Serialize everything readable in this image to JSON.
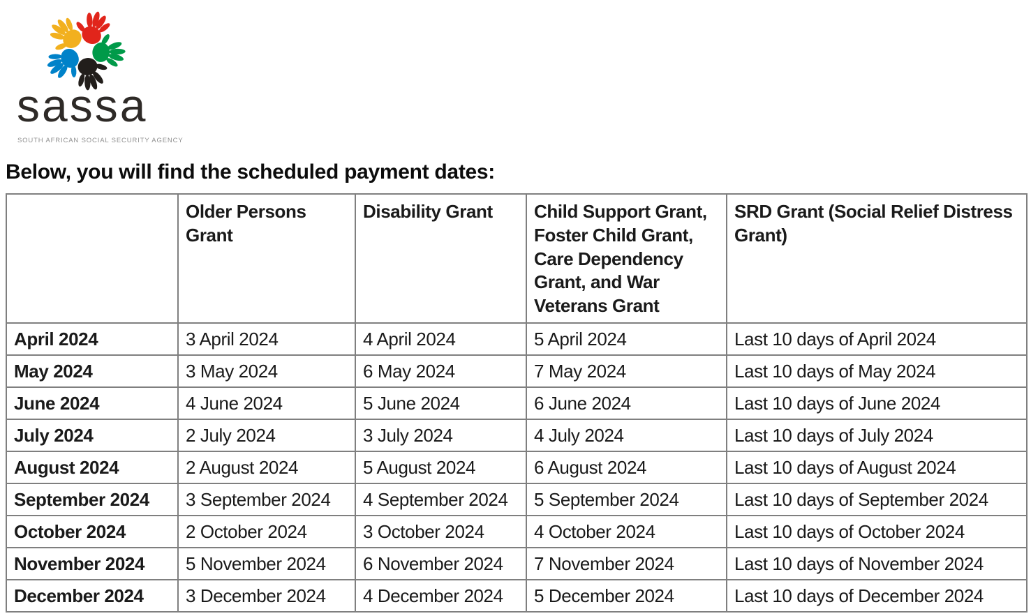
{
  "logo": {
    "brand": "sassa",
    "tagline": "SOUTH AFRICAN SOCIAL SECURITY AGENCY",
    "hand_colors": [
      "#F2B01E",
      "#E1251B",
      "#009A49",
      "#221E1B",
      "#0082C9"
    ],
    "brand_color": "#2e2a27",
    "tagline_color": "#8f8f8f"
  },
  "heading": "Below, you will find the scheduled payment dates:",
  "table": {
    "border_color": "#7f7f7f",
    "columns": [
      "",
      "Older Persons Grant",
      "Disability Grant",
      "Child Support Grant, Foster Child Grant, Care Dependency Grant, and War Veterans Grant",
      "SRD Grant (Social Relief Distress Grant)"
    ],
    "rows": [
      [
        "April 2024",
        "3 April 2024",
        "4 April 2024",
        "5 April 2024",
        "Last 10 days of April 2024"
      ],
      [
        "May 2024",
        "3 May 2024",
        "6 May 2024",
        "7 May 2024",
        "Last 10 days of May 2024"
      ],
      [
        "June 2024",
        "4 June 2024",
        "5 June 2024",
        "6 June 2024",
        "Last 10 days of June 2024"
      ],
      [
        "July 2024",
        "2 July 2024",
        "3 July 2024",
        "4 July 2024",
        "Last 10 days of July 2024"
      ],
      [
        "August 2024",
        "2 August 2024",
        "5 August 2024",
        "6 August 2024",
        "Last 10 days of August 2024"
      ],
      [
        "September 2024",
        "3 September 2024",
        "4 September 2024",
        "5 September 2024",
        "Last 10 days of September 2024"
      ],
      [
        "October 2024",
        "2 October 2024",
        "3 October 2024",
        "4 October 2024",
        "Last 10 days of October 2024"
      ],
      [
        "November 2024",
        "5 November 2024",
        "6 November 2024",
        "7 November 2024",
        "Last 10 days of November 2024"
      ],
      [
        "December 2024",
        "3 December 2024",
        "4 December 2024",
        "5 December 2024",
        "Last 10 days of December 2024"
      ]
    ]
  }
}
